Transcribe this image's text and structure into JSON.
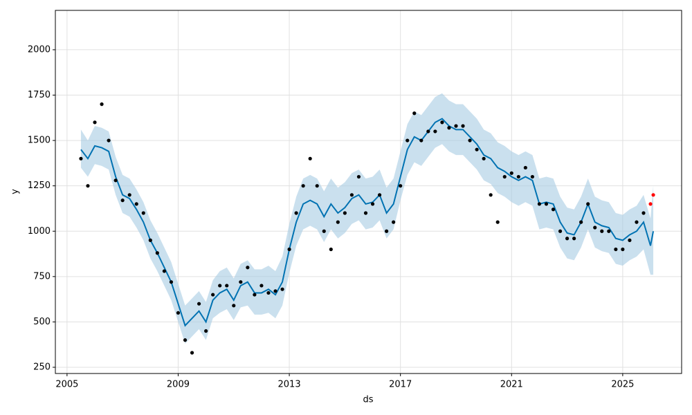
{
  "chart_data": {
    "type": "forecast",
    "xlabel": "ds",
    "ylabel": "y",
    "xlim": [
      2004.58,
      2027.12
    ],
    "ylim": [
      215.7,
      2217
    ],
    "xticks": [
      2005,
      2009,
      2013,
      2017,
      2021,
      2025
    ],
    "yticks": [
      250,
      500,
      750,
      1000,
      1250,
      1500,
      1750,
      2000
    ],
    "grid": true,
    "x": [
      2005.5,
      2005.75,
      2006.0,
      2006.25,
      2006.5,
      2006.75,
      2007.0,
      2007.25,
      2007.5,
      2007.75,
      2008.0,
      2008.25,
      2008.5,
      2008.75,
      2009.0,
      2009.25,
      2009.5,
      2009.75,
      2010.0,
      2010.25,
      2010.5,
      2010.75,
      2011.0,
      2011.25,
      2011.5,
      2011.75,
      2012.0,
      2012.25,
      2012.5,
      2012.75,
      2013.0,
      2013.25,
      2013.5,
      2013.75,
      2014.0,
      2014.25,
      2014.5,
      2014.75,
      2015.0,
      2015.25,
      2015.5,
      2015.75,
      2016.0,
      2016.25,
      2016.5,
      2016.75,
      2017.0,
      2017.25,
      2017.5,
      2017.75,
      2018.0,
      2018.25,
      2018.5,
      2018.75,
      2019.0,
      2019.25,
      2019.5,
      2019.75,
      2020.0,
      2020.25,
      2020.5,
      2020.75,
      2021.0,
      2021.25,
      2021.5,
      2021.75,
      2022.0,
      2022.25,
      2022.5,
      2022.75,
      2023.0,
      2023.25,
      2023.5,
      2023.75,
      2024.0,
      2024.25,
      2024.5,
      2024.75,
      2025.0,
      2025.25,
      2025.5,
      2025.75,
      2026.0,
      2026.1
    ],
    "series": [
      {
        "mode": "markers",
        "color": "#000000",
        "values": [
          1400,
          1250,
          1600,
          1700,
          1500,
          1280,
          1170,
          1200,
          1150,
          1100,
          950,
          880,
          780,
          720,
          550,
          400,
          330,
          600,
          450,
          650,
          700,
          700,
          590,
          720,
          800,
          650,
          700,
          660,
          670,
          680,
          900,
          1100,
          1250,
          1400,
          1250,
          1000,
          900,
          1050,
          1100,
          1200,
          1300,
          1100,
          1150,
          1200,
          1000,
          1050,
          1250,
          1500,
          1650,
          1500,
          1550,
          1550,
          1600,
          1570,
          1580,
          1580,
          1500,
          1450,
          1400,
          1200,
          1050,
          1300,
          1320,
          1300,
          1350,
          1300,
          1150,
          1150,
          1120,
          1000,
          960,
          960,
          1050,
          1150,
          1020,
          1000,
          1000,
          900,
          900,
          950,
          1050,
          1100,
          null,
          null
        ]
      },
      {
        "mode": "line",
        "color": "#0072B2",
        "values": [
          1450,
          1400,
          1470,
          1460,
          1440,
          1300,
          1200,
          1180,
          1120,
          1050,
          950,
          880,
          800,
          720,
          600,
          480,
          520,
          560,
          500,
          620,
          660,
          680,
          620,
          700,
          720,
          660,
          660,
          680,
          650,
          720,
          900,
          1050,
          1150,
          1170,
          1150,
          1080,
          1150,
          1100,
          1130,
          1180,
          1200,
          1150,
          1160,
          1200,
          1100,
          1150,
          1300,
          1450,
          1520,
          1500,
          1550,
          1600,
          1620,
          1580,
          1560,
          1560,
          1520,
          1480,
          1420,
          1400,
          1350,
          1330,
          1300,
          1280,
          1300,
          1280,
          1150,
          1160,
          1150,
          1050,
          990,
          980,
          1050,
          1150,
          1050,
          1030,
          1020,
          960,
          950,
          980,
          1000,
          1050,
          920,
          1000
        ]
      },
      {
        "mode": "band_lower",
        "color": "#a6cbe3",
        "values": [
          1350,
          1300,
          1370,
          1360,
          1340,
          1200,
          1100,
          1080,
          1020,
          950,
          850,
          780,
          700,
          620,
          500,
          380,
          420,
          460,
          400,
          520,
          550,
          570,
          510,
          580,
          590,
          540,
          540,
          550,
          520,
          590,
          770,
          920,
          1010,
          1030,
          1010,
          940,
          1010,
          960,
          990,
          1040,
          1060,
          1010,
          1020,
          1060,
          960,
          1010,
          1170,
          1310,
          1380,
          1360,
          1410,
          1460,
          1480,
          1440,
          1420,
          1420,
          1380,
          1340,
          1280,
          1260,
          1210,
          1190,
          1160,
          1140,
          1160,
          1140,
          1010,
          1020,
          1010,
          910,
          850,
          840,
          910,
          1010,
          910,
          890,
          880,
          820,
          810,
          840,
          860,
          900,
          760,
          760
        ]
      },
      {
        "mode": "band_upper",
        "color": "#a6cbe3",
        "values": [
          1560,
          1500,
          1580,
          1570,
          1550,
          1410,
          1310,
          1290,
          1230,
          1160,
          1060,
          990,
          910,
          830,
          710,
          590,
          630,
          670,
          610,
          730,
          780,
          800,
          740,
          820,
          840,
          790,
          790,
          810,
          780,
          860,
          1040,
          1190,
          1290,
          1310,
          1290,
          1220,
          1290,
          1240,
          1270,
          1320,
          1340,
          1290,
          1300,
          1340,
          1240,
          1290,
          1440,
          1590,
          1660,
          1640,
          1690,
          1740,
          1760,
          1720,
          1700,
          1700,
          1660,
          1620,
          1560,
          1540,
          1490,
          1470,
          1440,
          1420,
          1440,
          1420,
          1290,
          1300,
          1290,
          1190,
          1130,
          1120,
          1190,
          1290,
          1190,
          1170,
          1160,
          1100,
          1090,
          1120,
          1140,
          1200,
          1070,
          1250
        ]
      },
      {
        "mode": "markers",
        "color": "#ff0000",
        "values": [
          null,
          null,
          null,
          null,
          null,
          null,
          null,
          null,
          null,
          null,
          null,
          null,
          null,
          null,
          null,
          null,
          null,
          null,
          null,
          null,
          null,
          null,
          null,
          null,
          null,
          null,
          null,
          null,
          null,
          null,
          null,
          null,
          null,
          null,
          null,
          null,
          null,
          null,
          null,
          null,
          null,
          null,
          null,
          null,
          null,
          null,
          null,
          null,
          null,
          null,
          null,
          null,
          null,
          null,
          null,
          null,
          null,
          null,
          null,
          null,
          null,
          null,
          null,
          null,
          null,
          null,
          null,
          null,
          null,
          null,
          null,
          null,
          null,
          null,
          null,
          null,
          null,
          null,
          null,
          null,
          null,
          null,
          1150,
          1200
        ]
      }
    ]
  }
}
